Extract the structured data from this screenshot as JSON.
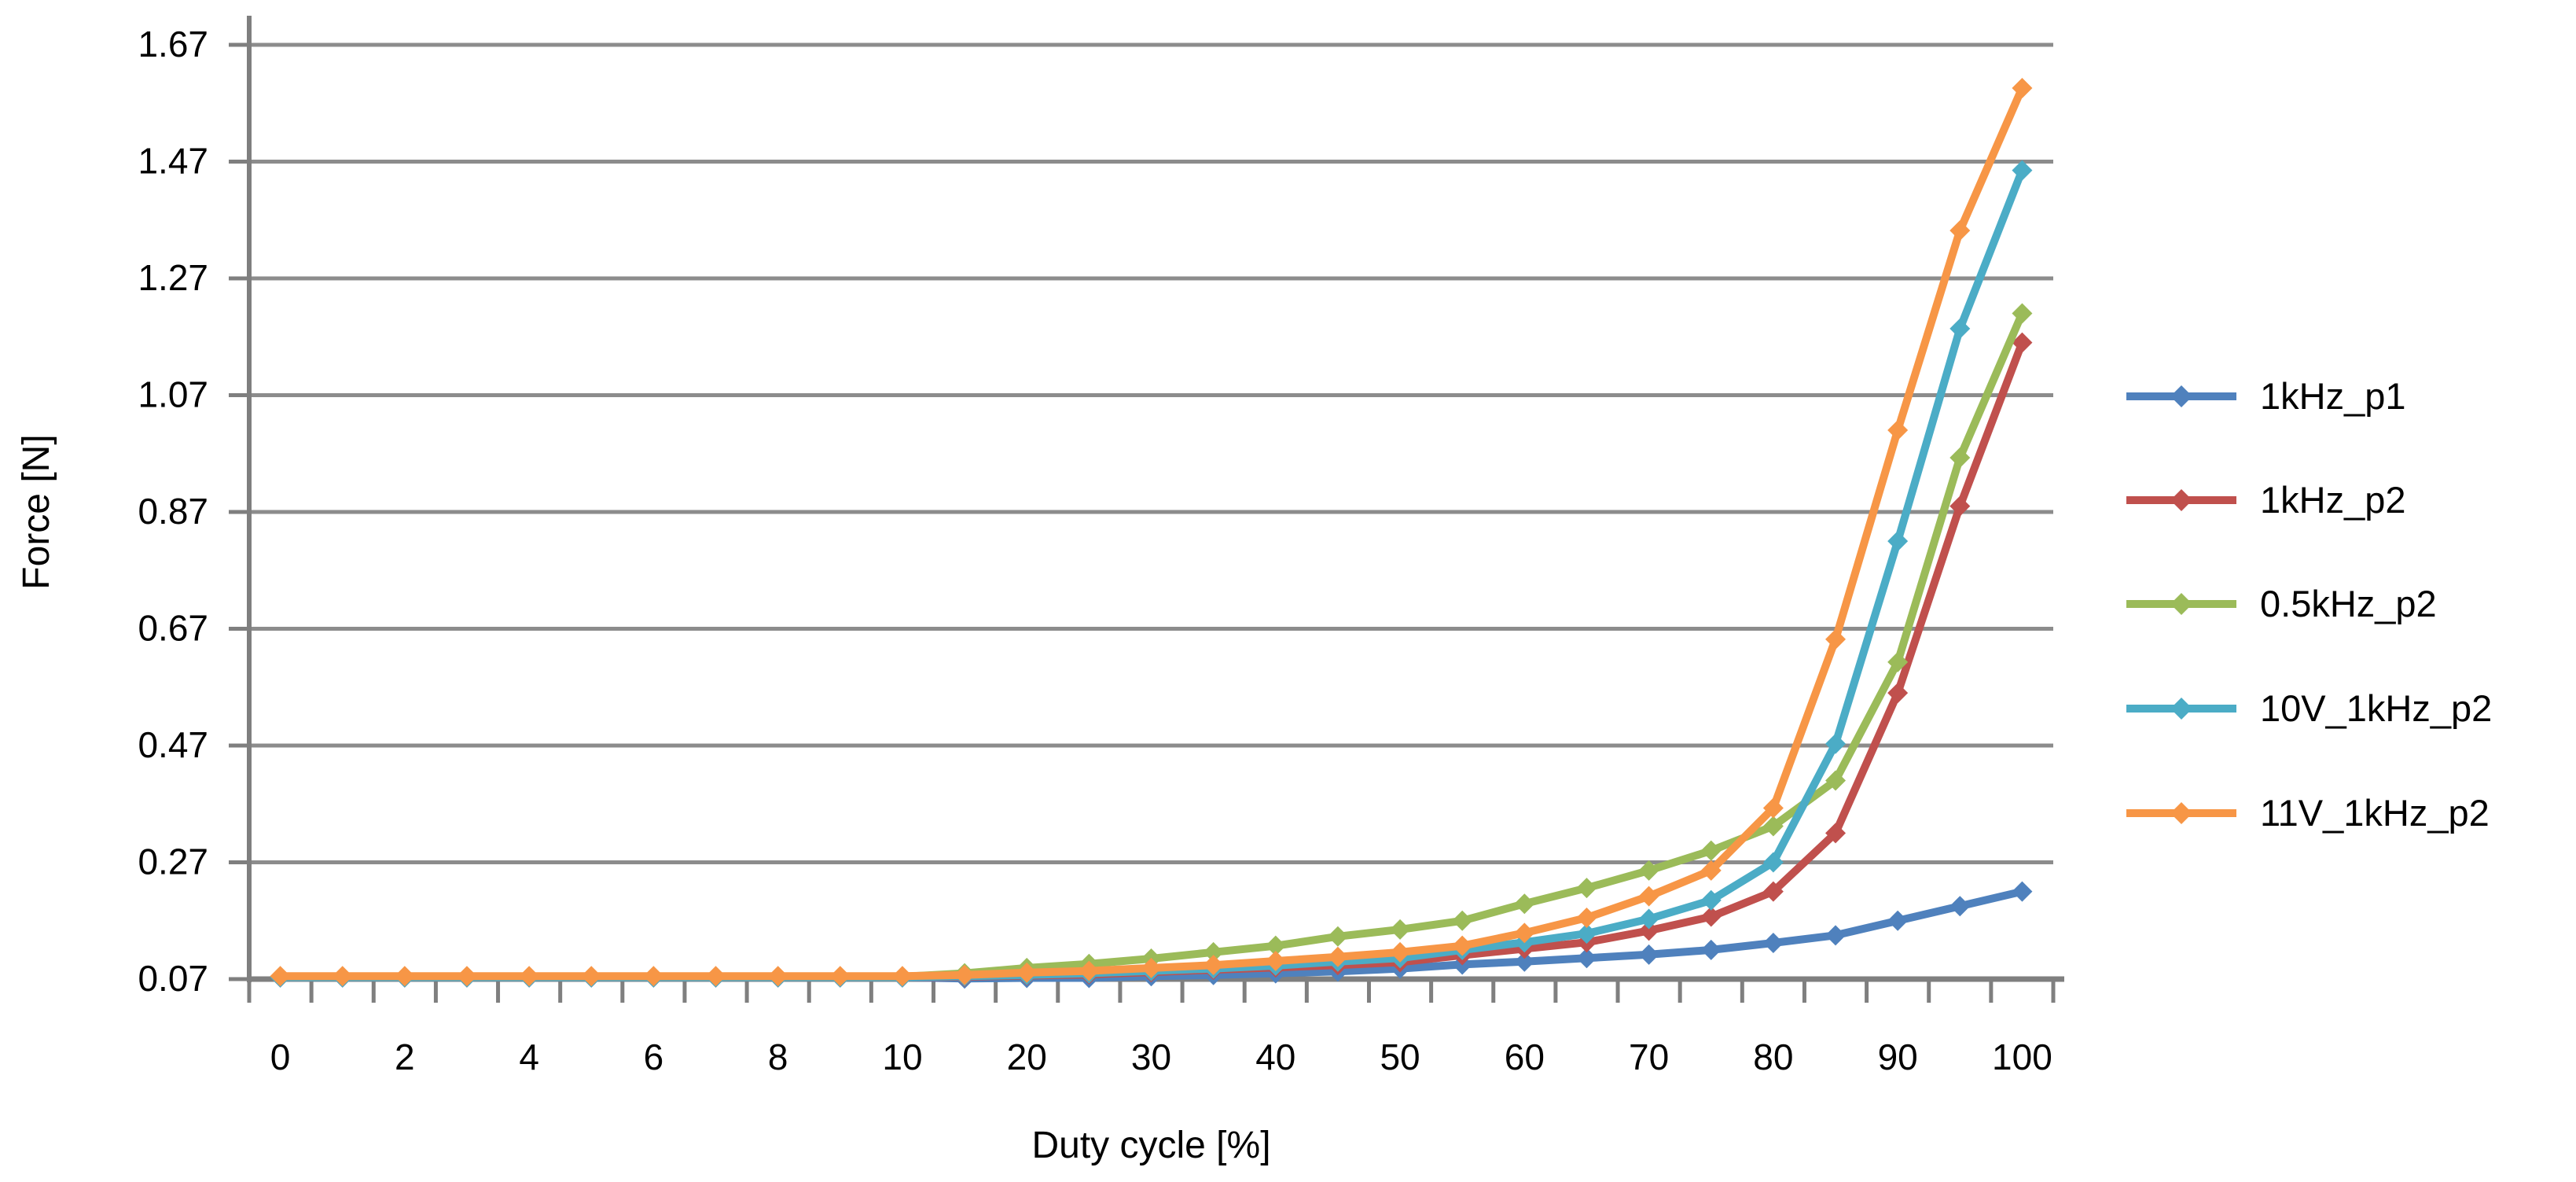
{
  "chart_data": {
    "type": "line",
    "title": "",
    "xlabel": "Duty cycle [%]",
    "ylabel": "Force [N]",
    "categories": [
      0,
      1,
      2,
      3,
      4,
      5,
      6,
      7,
      8,
      9,
      10,
      15,
      20,
      25,
      30,
      35,
      40,
      45,
      50,
      55,
      60,
      65,
      70,
      75,
      80,
      85,
      90,
      95,
      100
    ],
    "x_labeled_indices": [
      0,
      2,
      4,
      6,
      8,
      10,
      12,
      14,
      16,
      18,
      20,
      22,
      24,
      26,
      28
    ],
    "x_tick_labels": [
      "0",
      "2",
      "4",
      "6",
      "8",
      "10",
      "20",
      "30",
      "40",
      "50",
      "60",
      "70",
      "80",
      "90",
      "100"
    ],
    "y_ticks": [
      0.07,
      0.27,
      0.47,
      0.67,
      0.87,
      1.07,
      1.27,
      1.47,
      1.67
    ],
    "y_tick_labels": [
      "0.07",
      "0.27",
      "0.47",
      "0.67",
      "0.87",
      "1.07",
      "1.27",
      "1.47",
      "1.67"
    ],
    "ylim": [
      0.07,
      1.67
    ],
    "grid": true,
    "legend_position": "right",
    "marker": "diamond",
    "series": [
      {
        "name": "1kHz_p1",
        "color": "#4f81bd",
        "values": [
          0.073,
          0.073,
          0.073,
          0.073,
          0.073,
          0.073,
          0.073,
          0.073,
          0.073,
          0.073,
          0.073,
          0.071,
          0.072,
          0.072,
          0.075,
          0.077,
          0.08,
          0.083,
          0.088,
          0.095,
          0.1,
          0.106,
          0.112,
          0.12,
          0.132,
          0.145,
          0.17,
          0.195,
          0.22
        ]
      },
      {
        "name": "1kHz_p2",
        "color": "#c0504d",
        "values": [
          0.073,
          0.073,
          0.073,
          0.073,
          0.073,
          0.073,
          0.073,
          0.073,
          0.073,
          0.073,
          0.073,
          0.074,
          0.076,
          0.078,
          0.082,
          0.086,
          0.09,
          0.094,
          0.099,
          0.111,
          0.122,
          0.133,
          0.153,
          0.177,
          0.22,
          0.32,
          0.56,
          0.88,
          1.16
        ]
      },
      {
        "name": "0.5kHz_p2",
        "color": "#9bbb59",
        "values": [
          0.074,
          0.074,
          0.074,
          0.074,
          0.074,
          0.074,
          0.074,
          0.074,
          0.074,
          0.074,
          0.074,
          0.08,
          0.089,
          0.096,
          0.105,
          0.116,
          0.127,
          0.143,
          0.155,
          0.17,
          0.199,
          0.226,
          0.256,
          0.29,
          0.332,
          0.41,
          0.613,
          0.963,
          1.21
        ]
      },
      {
        "name": "10V_1kHz_p2",
        "color": "#4bacc6",
        "values": [
          0.073,
          0.073,
          0.073,
          0.073,
          0.073,
          0.073,
          0.073,
          0.073,
          0.073,
          0.073,
          0.073,
          0.075,
          0.077,
          0.08,
          0.084,
          0.088,
          0.093,
          0.1,
          0.106,
          0.12,
          0.133,
          0.148,
          0.173,
          0.205,
          0.27,
          0.473,
          0.82,
          1.184,
          1.455
        ]
      },
      {
        "name": "11V_1kHz_p2",
        "color": "#f79646",
        "values": [
          0.075,
          0.075,
          0.075,
          0.075,
          0.075,
          0.075,
          0.075,
          0.075,
          0.075,
          0.075,
          0.075,
          0.077,
          0.081,
          0.084,
          0.089,
          0.094,
          0.101,
          0.108,
          0.116,
          0.127,
          0.149,
          0.175,
          0.212,
          0.256,
          0.363,
          0.652,
          1.01,
          1.352,
          1.596
        ]
      }
    ],
    "style": {
      "grid_color": "#8c8c8c",
      "axis_color": "#7f7f7f",
      "text_color": "#000000",
      "background": "#ffffff"
    }
  }
}
